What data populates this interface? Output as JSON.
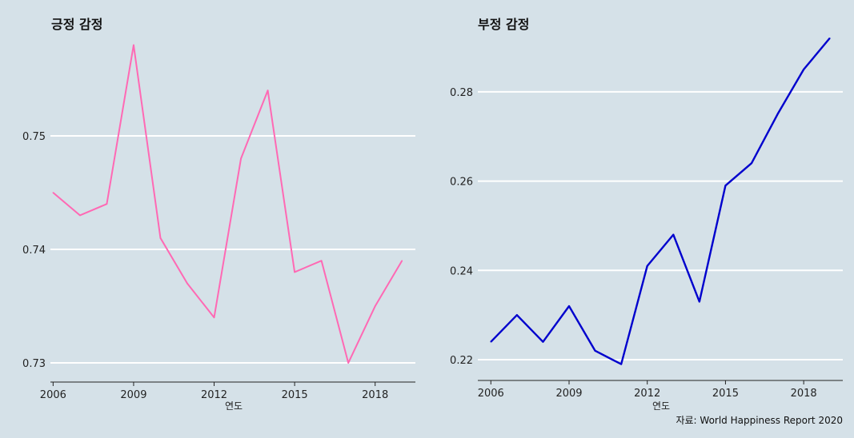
{
  "caption": "자료: World Happiness Report 2020",
  "chart_data": [
    {
      "type": "line",
      "title": "긍정 감정",
      "xlabel": "연도",
      "ylabel": "",
      "color": "#ff69b4",
      "x": [
        2006,
        2007,
        2008,
        2009,
        2010,
        2011,
        2012,
        2013,
        2014,
        2015,
        2016,
        2017,
        2018,
        2019
      ],
      "values": [
        0.745,
        0.743,
        0.744,
        0.758,
        0.741,
        0.737,
        0.734,
        0.748,
        0.754,
        0.738,
        0.739,
        0.73,
        0.735,
        0.739
      ],
      "xticks": [
        2006,
        2009,
        2012,
        2015,
        2018
      ],
      "xtick_labels": [
        "2006",
        "2009",
        "2012",
        "2015",
        "2018"
      ],
      "yticks": [
        0.73,
        0.74,
        0.75
      ],
      "ytick_labels": [
        "0.73",
        "0.74",
        "0.75"
      ],
      "xlim": [
        2005.9,
        2019.5
      ],
      "ylim": [
        0.7293,
        0.7588
      ]
    },
    {
      "type": "line",
      "title": "부정 감정",
      "xlabel": "연도",
      "ylabel": "",
      "color": "#0000cd",
      "x": [
        2006,
        2007,
        2008,
        2009,
        2010,
        2011,
        2012,
        2013,
        2014,
        2015,
        2016,
        2017,
        2018,
        2019
      ],
      "values": [
        0.224,
        0.23,
        0.224,
        0.232,
        0.222,
        0.219,
        0.241,
        0.248,
        0.233,
        0.259,
        0.264,
        0.275,
        0.285,
        0.292
      ],
      "xticks": [
        2006,
        2009,
        2012,
        2015,
        2018
      ],
      "xtick_labels": [
        "2006",
        "2009",
        "2012",
        "2015",
        "2018"
      ],
      "yticks": [
        0.22,
        0.24,
        0.26,
        0.28
      ],
      "ytick_labels": [
        "0.22",
        "0.24",
        "0.26",
        "0.28"
      ],
      "xlim": [
        2005.5,
        2019.5
      ],
      "ylim": [
        0.2175,
        0.2925
      ]
    }
  ]
}
